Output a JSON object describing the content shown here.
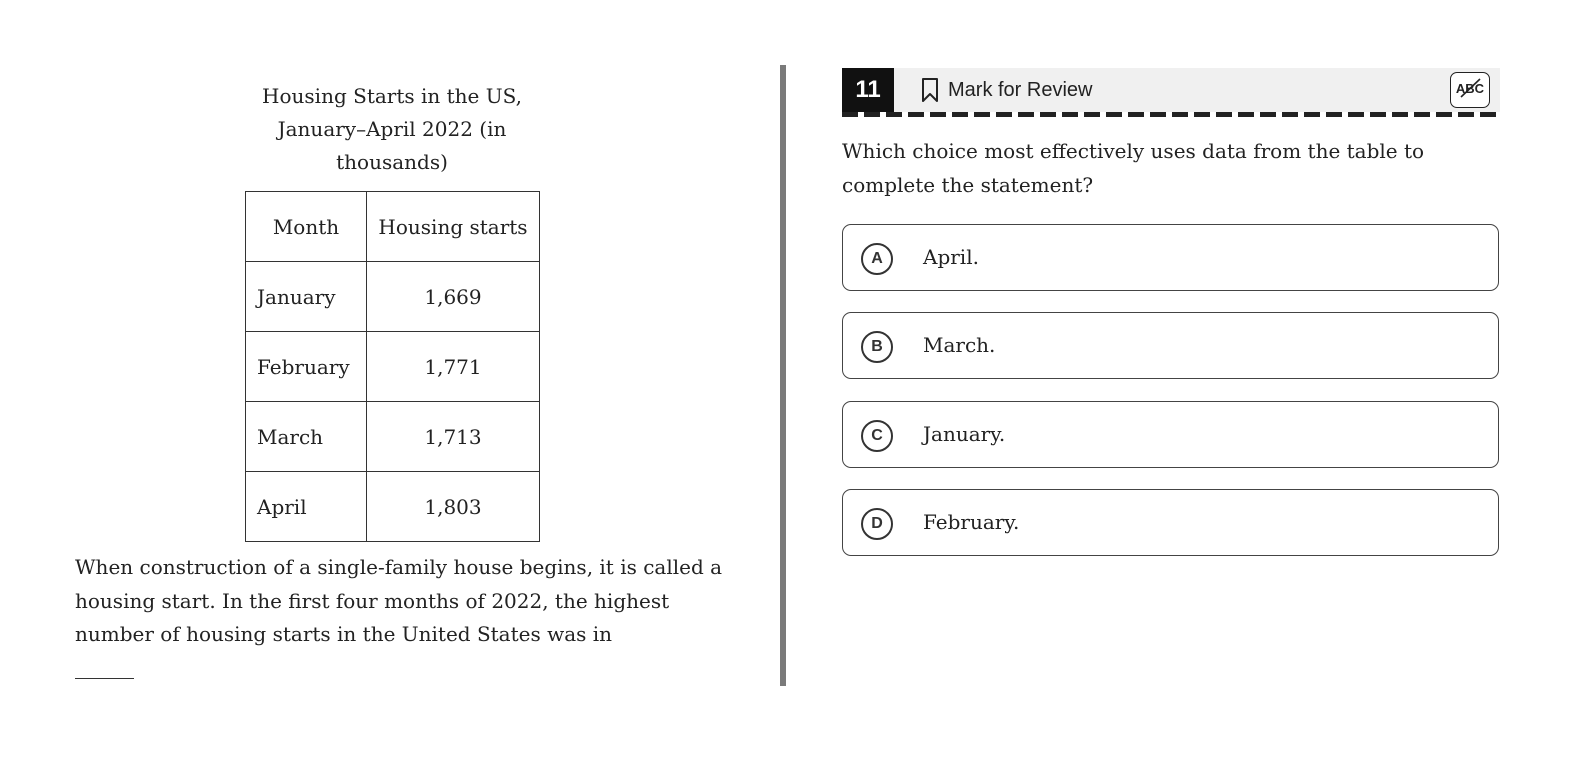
{
  "passage_pane": {
    "table_title": "Housing Starts in the US, January–April 2022 (in thousands)",
    "table": {
      "headers": [
        "Month",
        "Housing starts"
      ],
      "rows": [
        [
          "January",
          "1,669"
        ],
        [
          "February",
          "1,771"
        ],
        [
          "March",
          "1,713"
        ],
        [
          "April",
          "1,803"
        ]
      ]
    },
    "passage_text": "When construction of a single-family house begins, it is called a housing start. In the first four months of 2022, the highest number of housing starts in the United States was in"
  },
  "question_pane": {
    "header": {
      "question_number": "11",
      "mark_for_review_label": "Mark for Review",
      "bookmark_icon": "bookmark-icon",
      "abc_icon": "abc-strikethrough-icon",
      "abc_label": "ABC"
    },
    "stem": "Which choice most effectively uses data from the table to complete the statement?",
    "choices": [
      {
        "letter": "A",
        "text": "April."
      },
      {
        "letter": "B",
        "text": "March."
      },
      {
        "letter": "C",
        "text": "January."
      },
      {
        "letter": "D",
        "text": "February."
      }
    ]
  },
  "colors": {
    "divider": "#7a7a7a",
    "header_bg": "#f0f0f0",
    "question_number_bg": "#111111",
    "text": "#222222"
  }
}
